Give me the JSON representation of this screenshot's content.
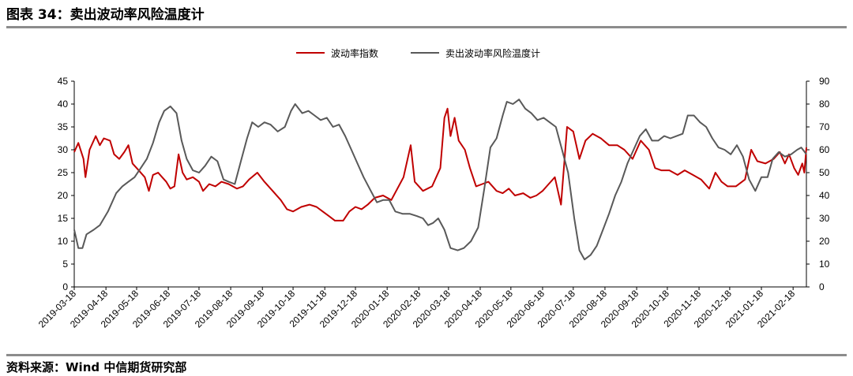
{
  "figure": {
    "title": "图表 34：卖出波动率风险温度计",
    "source": "资料来源：Wind  中信期货研究部"
  },
  "chart_data": {
    "type": "line",
    "legend": {
      "position": "top-center"
    },
    "grid": false,
    "x_ticks": [
      "2019-03-18",
      "2019-04-18",
      "2019-05-18",
      "2019-06-18",
      "2019-07-18",
      "2019-08-18",
      "2019-09-18",
      "2019-10-18",
      "2019-11-18",
      "2019-12-18",
      "2020-01-18",
      "2020-02-18",
      "2020-03-18",
      "2020-04-18",
      "2020-05-18",
      "2020-06-18",
      "2020-07-18",
      "2020-08-18",
      "2020-09-18",
      "2020-10-18",
      "2020-11-18",
      "2020-12-18",
      "2021-01-18",
      "2021-02-18"
    ],
    "y_left": {
      "min": 0,
      "max": 45,
      "ticks": [
        "0",
        "5",
        "10",
        "15",
        "20",
        "25",
        "30",
        "35",
        "40",
        "45"
      ]
    },
    "y_right": {
      "min": 0,
      "max": 90,
      "ticks": [
        "0",
        "10",
        "20",
        "30",
        "40",
        "50",
        "60",
        "70",
        "80",
        "90"
      ]
    },
    "series": [
      {
        "name": "波动率指数",
        "color": "#c00000",
        "axis": "left",
        "points": [
          [
            "2019-03-18",
            29.5
          ],
          [
            "2019-03-22",
            31.5
          ],
          [
            "2019-03-27",
            28.0
          ],
          [
            "2019-03-29",
            24.0
          ],
          [
            "2019-04-02",
            30.0
          ],
          [
            "2019-04-08",
            33.0
          ],
          [
            "2019-04-12",
            31.0
          ],
          [
            "2019-04-16",
            32.5
          ],
          [
            "2019-04-22",
            32.0
          ],
          [
            "2019-04-26",
            29.0
          ],
          [
            "2019-05-01",
            28.0
          ],
          [
            "2019-05-06",
            29.5
          ],
          [
            "2019-05-10",
            31.0
          ],
          [
            "2019-05-14",
            27.0
          ],
          [
            "2019-05-20",
            25.5
          ],
          [
            "2019-05-26",
            24.0
          ],
          [
            "2019-05-30",
            21.0
          ],
          [
            "2019-06-03",
            24.5
          ],
          [
            "2019-06-08",
            25.0
          ],
          [
            "2019-06-12",
            24.0
          ],
          [
            "2019-06-16",
            23.0
          ],
          [
            "2019-06-20",
            21.5
          ],
          [
            "2019-06-24",
            22.0
          ],
          [
            "2019-06-28",
            29.0
          ],
          [
            "2019-07-02",
            25.0
          ],
          [
            "2019-07-06",
            23.5
          ],
          [
            "2019-07-12",
            24.0
          ],
          [
            "2019-07-18",
            23.0
          ],
          [
            "2019-07-22",
            21.0
          ],
          [
            "2019-07-28",
            22.5
          ],
          [
            "2019-08-03",
            22.0
          ],
          [
            "2019-08-09",
            23.0
          ],
          [
            "2019-08-16",
            22.5
          ],
          [
            "2019-08-24",
            21.5
          ],
          [
            "2019-08-30",
            22.0
          ],
          [
            "2019-09-05",
            23.5
          ],
          [
            "2019-09-13",
            25.0
          ],
          [
            "2019-09-20",
            23.0
          ],
          [
            "2019-09-28",
            21.0
          ],
          [
            "2019-10-06",
            19.0
          ],
          [
            "2019-10-12",
            17.0
          ],
          [
            "2019-10-18",
            16.5
          ],
          [
            "2019-10-26",
            17.5
          ],
          [
            "2019-11-03",
            18.0
          ],
          [
            "2019-11-10",
            17.5
          ],
          [
            "2019-11-16",
            16.5
          ],
          [
            "2019-11-22",
            15.5
          ],
          [
            "2019-11-28",
            14.5
          ],
          [
            "2019-12-06",
            14.5
          ],
          [
            "2019-12-12",
            16.5
          ],
          [
            "2019-12-18",
            17.5
          ],
          [
            "2019-12-24",
            17.0
          ],
          [
            "2019-12-30",
            18.0
          ],
          [
            "2020-01-06",
            19.5
          ],
          [
            "2020-01-14",
            20.0
          ],
          [
            "2020-01-22",
            19.0
          ],
          [
            "2020-02-03",
            24.0
          ],
          [
            "2020-02-10",
            31.0
          ],
          [
            "2020-02-14",
            23.0
          ],
          [
            "2020-02-22",
            21.0
          ],
          [
            "2020-03-02",
            22.0
          ],
          [
            "2020-03-10",
            26.0
          ],
          [
            "2020-03-14",
            37.0
          ],
          [
            "2020-03-17",
            39.0
          ],
          [
            "2020-03-20",
            33.0
          ],
          [
            "2020-03-24",
            37.0
          ],
          [
            "2020-03-28",
            32.0
          ],
          [
            "2020-04-03",
            30.0
          ],
          [
            "2020-04-08",
            26.0
          ],
          [
            "2020-04-14",
            22.0
          ],
          [
            "2020-04-20",
            22.5
          ],
          [
            "2020-04-26",
            23.0
          ],
          [
            "2020-05-04",
            21.0
          ],
          [
            "2020-05-10",
            20.5
          ],
          [
            "2020-05-16",
            21.5
          ],
          [
            "2020-05-22",
            20.0
          ],
          [
            "2020-05-30",
            20.5
          ],
          [
            "2020-06-06",
            19.5
          ],
          [
            "2020-06-12",
            20.0
          ],
          [
            "2020-06-18",
            21.0
          ],
          [
            "2020-06-24",
            22.5
          ],
          [
            "2020-06-30",
            24.0
          ],
          [
            "2020-07-06",
            18.0
          ],
          [
            "2020-07-12",
            35.0
          ],
          [
            "2020-07-18",
            34.0
          ],
          [
            "2020-07-24",
            28.0
          ],
          [
            "2020-07-30",
            32.0
          ],
          [
            "2020-08-06",
            33.5
          ],
          [
            "2020-08-14",
            32.5
          ],
          [
            "2020-08-22",
            31.0
          ],
          [
            "2020-08-30",
            31.0
          ],
          [
            "2020-09-06",
            30.0
          ],
          [
            "2020-09-14",
            28.0
          ],
          [
            "2020-09-22",
            32.0
          ],
          [
            "2020-09-30",
            30.0
          ],
          [
            "2020-10-06",
            26.0
          ],
          [
            "2020-10-12",
            25.5
          ],
          [
            "2020-10-20",
            25.5
          ],
          [
            "2020-10-28",
            24.5
          ],
          [
            "2020-11-04",
            25.5
          ],
          [
            "2020-11-12",
            24.5
          ],
          [
            "2020-11-20",
            23.5
          ],
          [
            "2020-11-28",
            21.5
          ],
          [
            "2020-12-04",
            25.0
          ],
          [
            "2020-12-10",
            23.0
          ],
          [
            "2020-12-16",
            22.0
          ],
          [
            "2020-12-24",
            22.0
          ],
          [
            "2021-01-02",
            23.5
          ],
          [
            "2021-01-08",
            30.0
          ],
          [
            "2021-01-14",
            27.5
          ],
          [
            "2021-01-22",
            27.0
          ],
          [
            "2021-01-30",
            28.0
          ],
          [
            "2021-02-05",
            29.5
          ],
          [
            "2021-02-10",
            27.0
          ],
          [
            "2021-02-14",
            29.0
          ],
          [
            "2021-02-19",
            26.0
          ],
          [
            "2021-02-23",
            24.5
          ],
          [
            "2021-02-27",
            27.0
          ],
          [
            "2021-03-01",
            25.0
          ],
          [
            "2021-03-03",
            30.5
          ]
        ]
      },
      {
        "name": "卖出波动率风险温度计",
        "color": "#595959",
        "axis": "right",
        "points": [
          [
            "2019-03-18",
            25
          ],
          [
            "2019-03-22",
            17
          ],
          [
            "2019-03-26",
            17
          ],
          [
            "2019-03-30",
            23
          ],
          [
            "2019-04-06",
            25
          ],
          [
            "2019-04-12",
            27
          ],
          [
            "2019-04-20",
            33
          ],
          [
            "2019-04-28",
            41
          ],
          [
            "2019-05-04",
            44
          ],
          [
            "2019-05-10",
            46
          ],
          [
            "2019-05-16",
            48
          ],
          [
            "2019-05-22",
            52
          ],
          [
            "2019-05-28",
            56
          ],
          [
            "2019-06-03",
            63
          ],
          [
            "2019-06-09",
            72
          ],
          [
            "2019-06-14",
            77
          ],
          [
            "2019-06-20",
            79
          ],
          [
            "2019-06-26",
            76
          ],
          [
            "2019-07-01",
            64
          ],
          [
            "2019-07-06",
            56
          ],
          [
            "2019-07-12",
            51
          ],
          [
            "2019-07-18",
            50
          ],
          [
            "2019-07-24",
            53
          ],
          [
            "2019-07-30",
            57
          ],
          [
            "2019-08-05",
            55
          ],
          [
            "2019-08-11",
            47
          ],
          [
            "2019-08-16",
            46
          ],
          [
            "2019-08-22",
            45
          ],
          [
            "2019-08-28",
            55
          ],
          [
            "2019-09-03",
            65
          ],
          [
            "2019-09-08",
            72
          ],
          [
            "2019-09-14",
            70
          ],
          [
            "2019-09-20",
            72
          ],
          [
            "2019-09-26",
            71
          ],
          [
            "2019-10-03",
            68
          ],
          [
            "2019-10-10",
            70
          ],
          [
            "2019-10-16",
            77
          ],
          [
            "2019-10-20",
            80
          ],
          [
            "2019-10-27",
            76
          ],
          [
            "2019-11-02",
            77
          ],
          [
            "2019-11-08",
            75
          ],
          [
            "2019-11-14",
            73
          ],
          [
            "2019-11-20",
            74
          ],
          [
            "2019-11-26",
            70
          ],
          [
            "2019-12-02",
            71
          ],
          [
            "2019-12-08",
            66
          ],
          [
            "2019-12-14",
            60
          ],
          [
            "2019-12-20",
            54
          ],
          [
            "2019-12-26",
            48
          ],
          [
            "2020-01-02",
            42
          ],
          [
            "2020-01-08",
            37
          ],
          [
            "2020-01-14",
            38
          ],
          [
            "2020-01-20",
            38
          ],
          [
            "2020-01-26",
            33
          ],
          [
            "2020-02-02",
            32
          ],
          [
            "2020-02-09",
            32
          ],
          [
            "2020-02-16",
            31
          ],
          [
            "2020-02-22",
            30
          ],
          [
            "2020-02-27",
            27
          ],
          [
            "2020-03-03",
            28
          ],
          [
            "2020-03-08",
            30
          ],
          [
            "2020-03-14",
            25
          ],
          [
            "2020-03-20",
            17
          ],
          [
            "2020-03-27",
            16
          ],
          [
            "2020-04-02",
            17
          ],
          [
            "2020-04-09",
            20
          ],
          [
            "2020-04-16",
            26
          ],
          [
            "2020-04-22",
            43
          ],
          [
            "2020-04-28",
            61
          ],
          [
            "2020-05-04",
            65
          ],
          [
            "2020-05-10",
            75
          ],
          [
            "2020-05-14",
            81
          ],
          [
            "2020-05-20",
            80
          ],
          [
            "2020-05-26",
            82
          ],
          [
            "2020-06-01",
            78
          ],
          [
            "2020-06-07",
            76
          ],
          [
            "2020-06-13",
            73
          ],
          [
            "2020-06-19",
            74
          ],
          [
            "2020-06-25",
            72
          ],
          [
            "2020-07-01",
            70
          ],
          [
            "2020-07-07",
            60
          ],
          [
            "2020-07-13",
            50
          ],
          [
            "2020-07-19",
            30
          ],
          [
            "2020-07-24",
            16
          ],
          [
            "2020-07-29",
            12
          ],
          [
            "2020-08-04",
            14
          ],
          [
            "2020-08-10",
            18
          ],
          [
            "2020-08-16",
            25
          ],
          [
            "2020-08-22",
            32
          ],
          [
            "2020-08-28",
            40
          ],
          [
            "2020-09-03",
            46
          ],
          [
            "2020-09-09",
            54
          ],
          [
            "2020-09-15",
            60
          ],
          [
            "2020-09-21",
            66
          ],
          [
            "2020-09-27",
            69
          ],
          [
            "2020-10-03",
            64
          ],
          [
            "2020-10-09",
            64
          ],
          [
            "2020-10-15",
            66
          ],
          [
            "2020-10-21",
            65
          ],
          [
            "2020-10-27",
            66
          ],
          [
            "2020-11-02",
            67
          ],
          [
            "2020-11-07",
            75
          ],
          [
            "2020-11-13",
            75
          ],
          [
            "2020-11-19",
            72
          ],
          [
            "2020-11-25",
            70
          ],
          [
            "2020-12-01",
            65
          ],
          [
            "2020-12-07",
            61
          ],
          [
            "2020-12-13",
            60
          ],
          [
            "2020-12-19",
            58
          ],
          [
            "2020-12-25",
            62
          ],
          [
            "2020-12-31",
            57
          ],
          [
            "2021-01-06",
            47
          ],
          [
            "2021-01-12",
            42
          ],
          [
            "2021-01-18",
            48
          ],
          [
            "2021-01-24",
            48
          ],
          [
            "2021-01-29",
            56
          ],
          [
            "2021-02-04",
            59
          ],
          [
            "2021-02-10",
            57
          ],
          [
            "2021-02-16",
            58
          ],
          [
            "2021-02-22",
            60
          ],
          [
            "2021-02-26",
            61
          ],
          [
            "2021-03-03",
            58
          ]
        ]
      }
    ]
  }
}
